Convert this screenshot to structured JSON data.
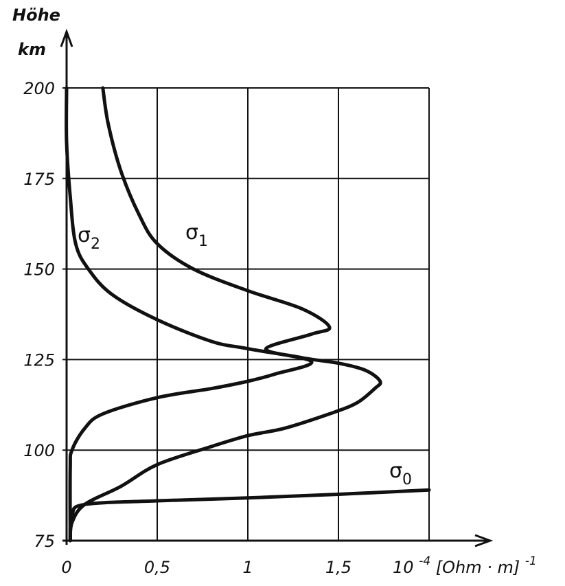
{
  "chart_data": {
    "type": "line",
    "ylabel_line1": "Höhe",
    "ylabel_line2": "km",
    "x_unit_prefix": "10",
    "x_unit_exp": "-4",
    "x_unit_body": "[Ohm · m]",
    "x_unit_exp2": "-1",
    "xlim": [
      0,
      2
    ],
    "ylim": [
      75,
      200
    ],
    "grid": true,
    "x_ticks": [
      {
        "value": 0,
        "label": "0"
      },
      {
        "value": 0.5,
        "label": "0,5"
      },
      {
        "value": 1,
        "label": "1"
      },
      {
        "value": 1.5,
        "label": "1,5"
      }
    ],
    "y_ticks": [
      {
        "value": 75,
        "label": "75"
      },
      {
        "value": 100,
        "label": "100"
      },
      {
        "value": 125,
        "label": "125"
      },
      {
        "value": 150,
        "label": "150"
      },
      {
        "value": 175,
        "label": "175"
      },
      {
        "value": 200,
        "label": "200"
      }
    ],
    "series": [
      {
        "name": "σ",
        "sub": "0",
        "points": [
          [
            0.02,
            75
          ],
          [
            0.03,
            82
          ],
          [
            0.1,
            85
          ],
          [
            0.5,
            86
          ],
          [
            1.0,
            86.8
          ],
          [
            1.5,
            87.8
          ],
          [
            2.0,
            89
          ]
        ]
      },
      {
        "name": "σ",
        "sub": "1",
        "points": [
          [
            0.02,
            75
          ],
          [
            0.03,
            80
          ],
          [
            0.1,
            85
          ],
          [
            0.3,
            90
          ],
          [
            0.5,
            96
          ],
          [
            0.8,
            101
          ],
          [
            1.0,
            104
          ],
          [
            1.2,
            106
          ],
          [
            1.45,
            110
          ],
          [
            1.6,
            113
          ],
          [
            1.7,
            117
          ],
          [
            1.73,
            119
          ],
          [
            1.65,
            122
          ],
          [
            1.5,
            124
          ],
          [
            1.3,
            125.5
          ],
          [
            1.1,
            128
          ],
          [
            1.35,
            132
          ],
          [
            1.45,
            134
          ],
          [
            1.3,
            139
          ],
          [
            1.0,
            144
          ],
          [
            0.7,
            150
          ],
          [
            0.5,
            157
          ],
          [
            0.4,
            165
          ],
          [
            0.3,
            177
          ],
          [
            0.23,
            190
          ],
          [
            0.2,
            200
          ]
        ]
      },
      {
        "name": "σ",
        "sub": "2",
        "points": [
          [
            0.02,
            75
          ],
          [
            0.02,
            95
          ],
          [
            0.03,
            100
          ],
          [
            0.1,
            106
          ],
          [
            0.2,
            110
          ],
          [
            0.5,
            114.5
          ],
          [
            0.8,
            117
          ],
          [
            1.0,
            119
          ],
          [
            1.15,
            121
          ],
          [
            1.35,
            124.5
          ],
          [
            1.0,
            128
          ],
          [
            0.8,
            130
          ],
          [
            0.5,
            136
          ],
          [
            0.25,
            143
          ],
          [
            0.12,
            150
          ],
          [
            0.05,
            157
          ],
          [
            0.02,
            170
          ],
          [
            0.0,
            185
          ],
          [
            0.0,
            200
          ]
        ]
      }
    ]
  }
}
